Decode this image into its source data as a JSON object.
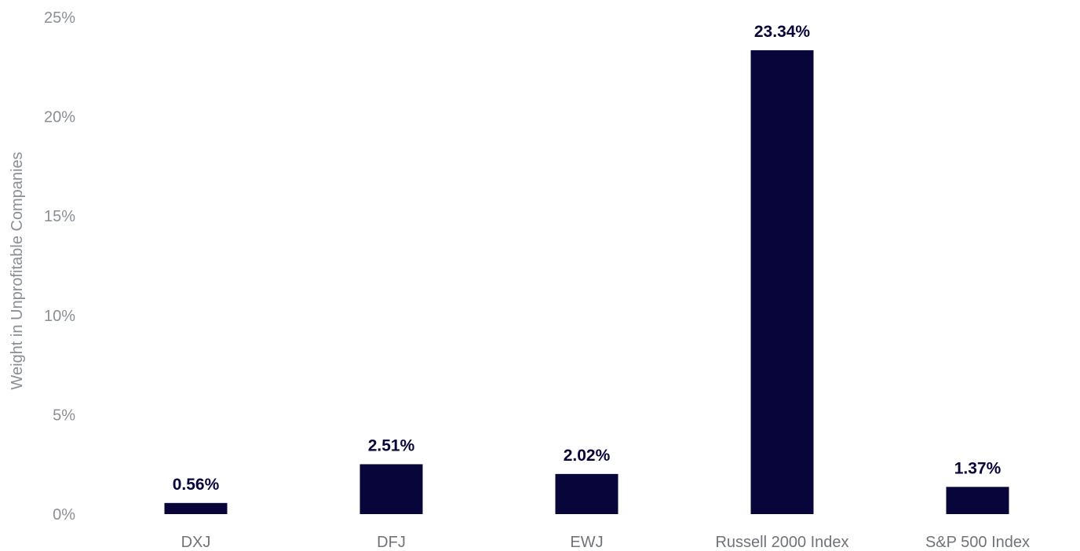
{
  "chart_data": {
    "type": "bar",
    "title": "",
    "xlabel": "",
    "ylabel": "Weight in Unprofitable Companies",
    "categories": [
      "DXJ",
      "DFJ",
      "EWJ",
      "Russell 2000 Index",
      "S&P 500 Index"
    ],
    "values": [
      0.56,
      2.51,
      2.02,
      23.34,
      1.37
    ],
    "value_labels": [
      "0.56%",
      "2.51%",
      "2.02%",
      "23.34%",
      "1.37%"
    ],
    "y_ticks": [
      0,
      5,
      10,
      15,
      20,
      25
    ],
    "y_tick_labels": [
      "0%",
      "5%",
      "10%",
      "15%",
      "20%",
      "25%"
    ],
    "ylim": [
      0,
      25
    ],
    "grid": false,
    "legend": "none",
    "bar_color": "#07053a"
  }
}
